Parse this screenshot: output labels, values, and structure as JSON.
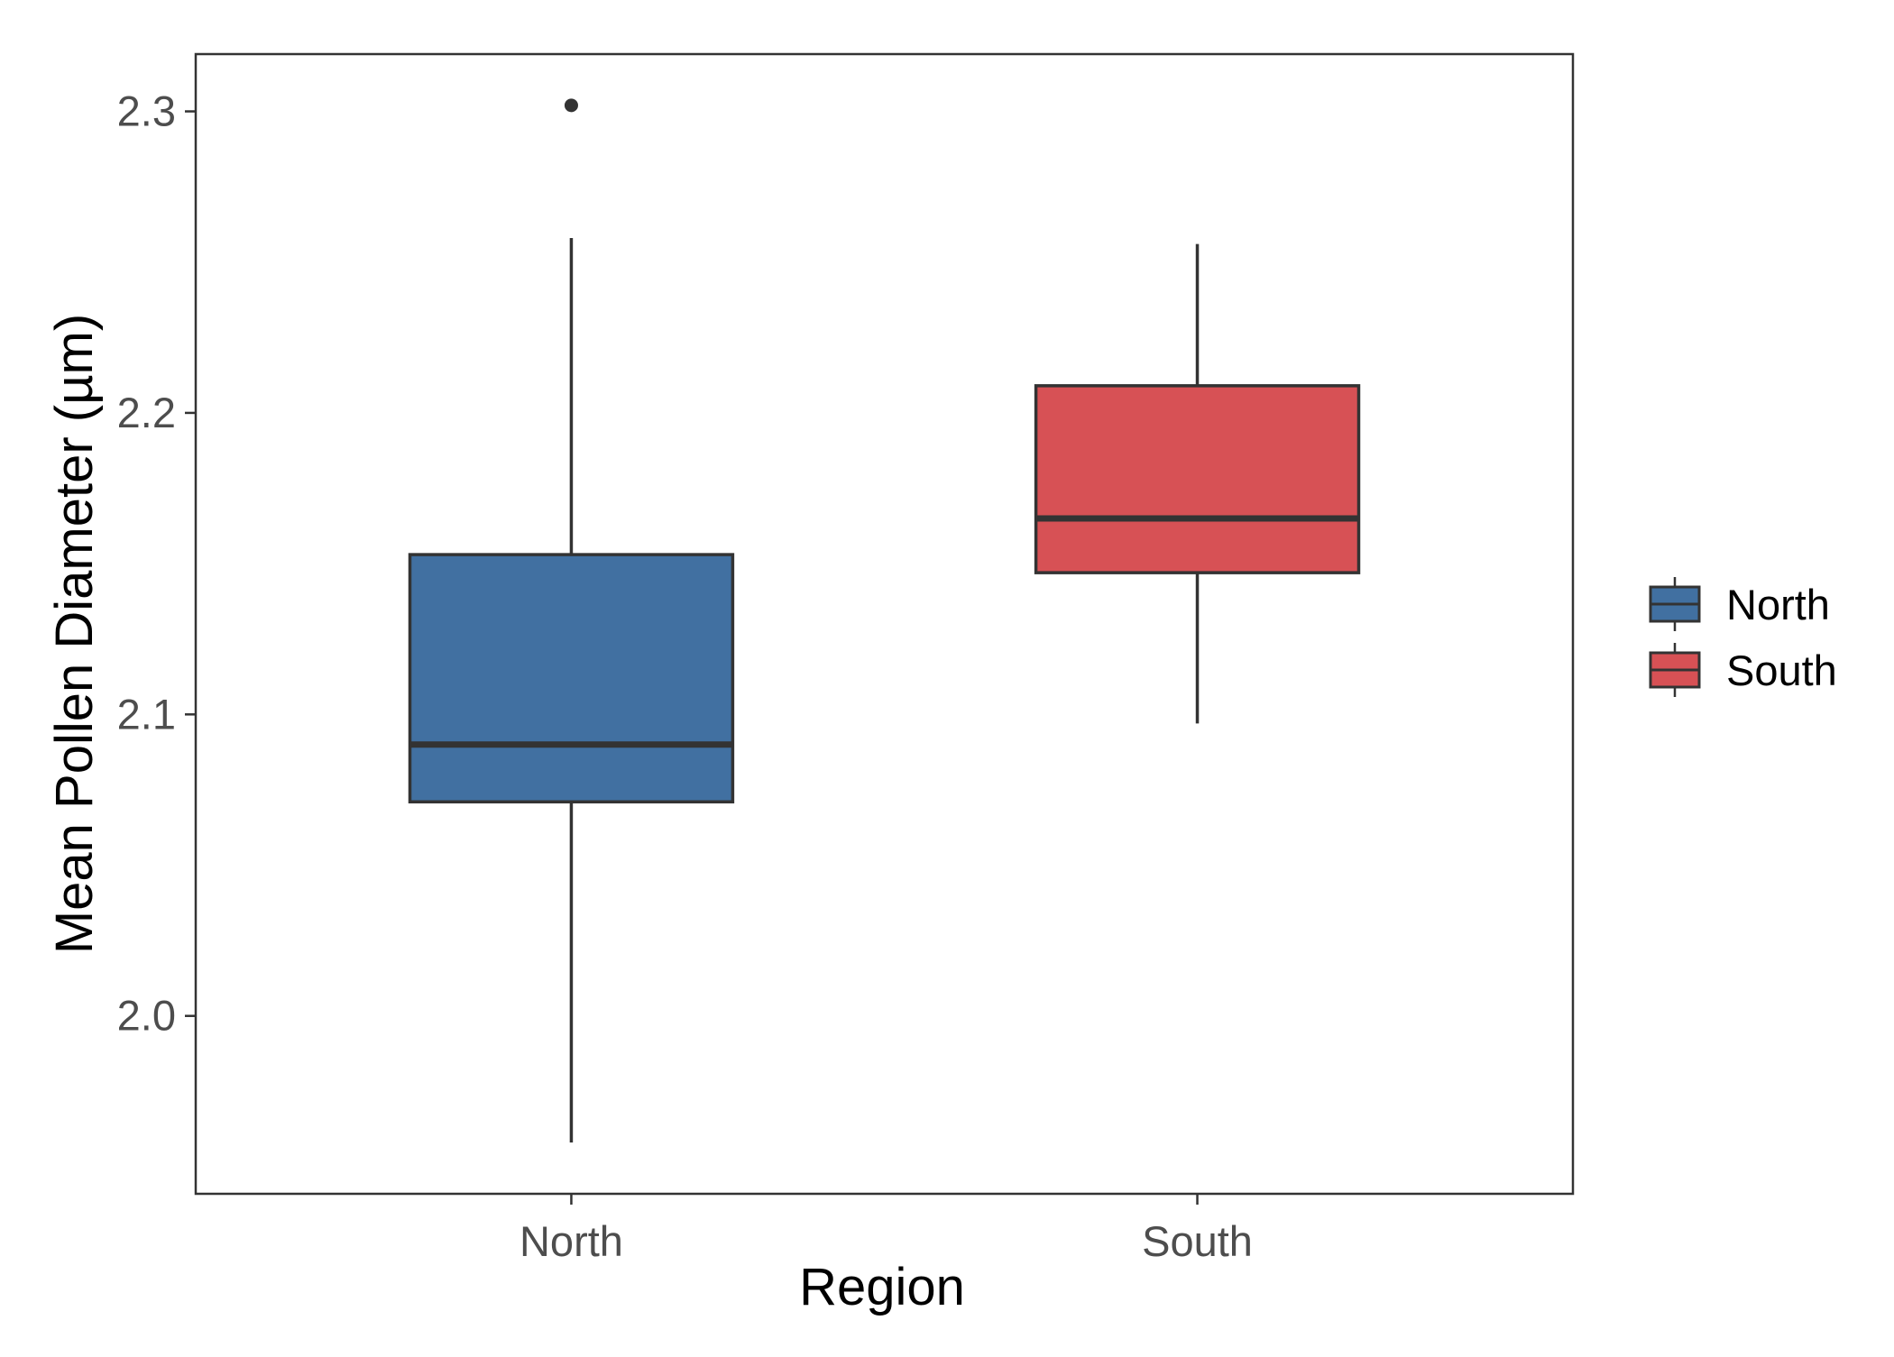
{
  "chart_data": {
    "type": "boxplot",
    "xlabel": "Region",
    "ylabel": "Mean Pollen Diameter (µm)",
    "categories": [
      "North",
      "South"
    ],
    "ylim": [
      1.941,
      2.319
    ],
    "yticks": [
      2.0,
      2.1,
      2.2,
      2.3
    ],
    "ytick_labels": [
      "2.0",
      "2.1",
      "2.2",
      "2.3"
    ],
    "grid": false,
    "legend_position": "right",
    "series": [
      {
        "name": "North",
        "color": "#4170a1",
        "whisker_low": 1.958,
        "q1": 2.071,
        "median": 2.09,
        "q3": 2.153,
        "whisker_high": 2.258,
        "outliers": [
          2.302
        ]
      },
      {
        "name": "South",
        "color": "#d75155",
        "whisker_low": 2.097,
        "q1": 2.147,
        "median": 2.165,
        "q3": 2.209,
        "whisker_high": 2.256,
        "outliers": []
      }
    ]
  }
}
